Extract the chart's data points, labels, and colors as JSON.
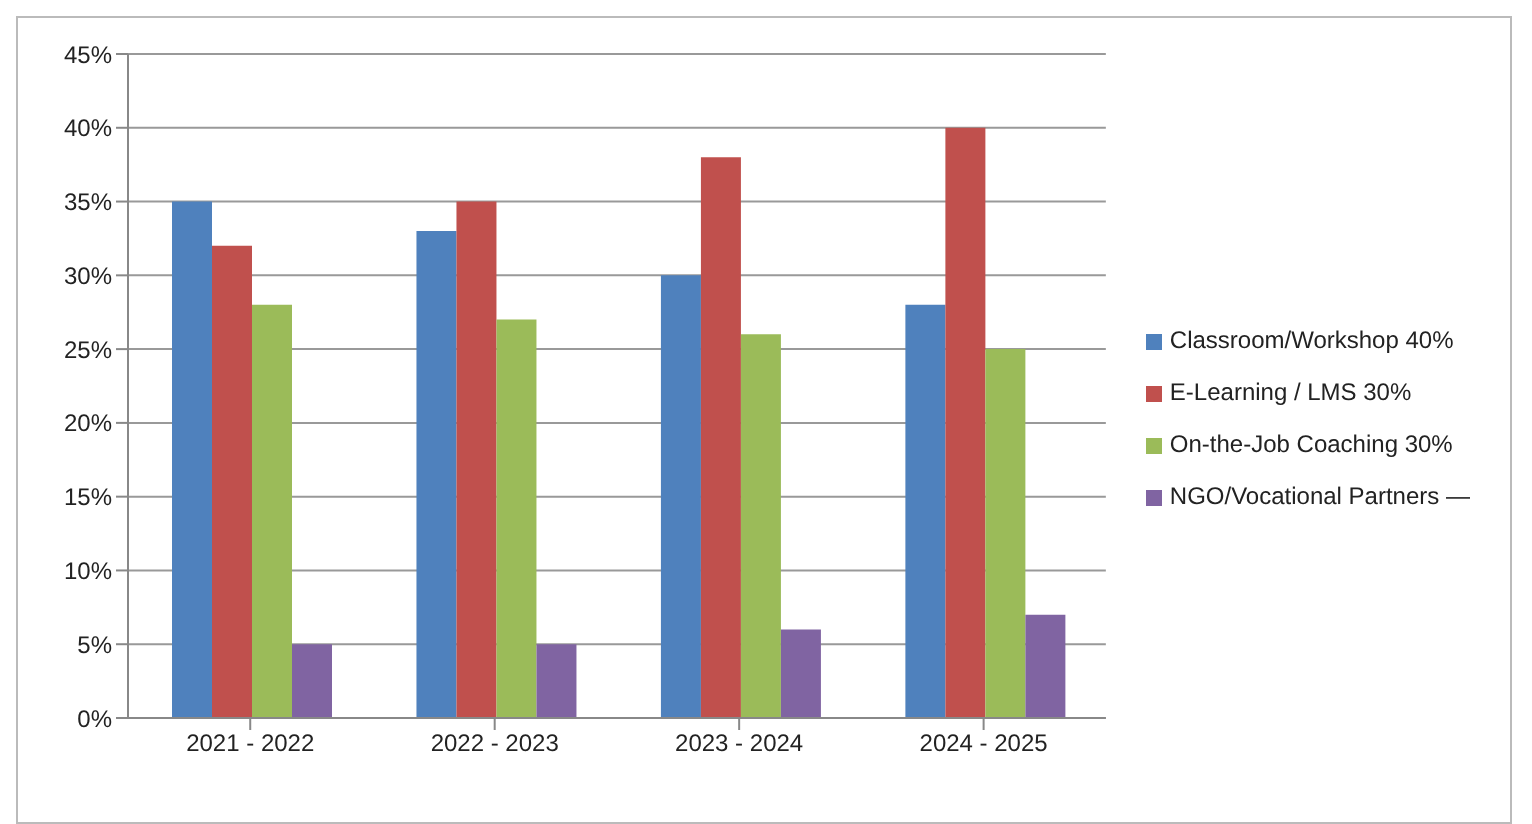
{
  "chart_data": {
    "type": "bar",
    "categories": [
      "2021 - 2022",
      "2022 - 2023",
      "2023 - 2024",
      "2024 - 2025"
    ],
    "series": [
      {
        "name": "Classroom/Workshop 40%",
        "color": "#4f81bd",
        "values": [
          35,
          33,
          30,
          28
        ]
      },
      {
        "name": "E-Learning / LMS 30%",
        "color": "#c0504d",
        "values": [
          32,
          35,
          38,
          40
        ]
      },
      {
        "name": "On-the-Job Coaching 30%",
        "color": "#9bbb59",
        "values": [
          28,
          27,
          26,
          25
        ]
      },
      {
        "name": "NGO/Vocational Partners —",
        "color": "#8064a2",
        "values": [
          5,
          5,
          6,
          7
        ]
      }
    ],
    "ylim": [
      0,
      45
    ],
    "yticks": [
      {
        "value": 0,
        "label": "0%"
      },
      {
        "value": 5,
        "label": "5%"
      },
      {
        "value": 10,
        "label": "10%"
      },
      {
        "value": 15,
        "label": "15%"
      },
      {
        "value": 20,
        "label": "20%"
      },
      {
        "value": 25,
        "label": "25%"
      },
      {
        "value": 30,
        "label": "30%"
      },
      {
        "value": 35,
        "label": "35%"
      },
      {
        "value": 40,
        "label": "40%"
      },
      {
        "value": 45,
        "label": "45%"
      }
    ],
    "grid": "y",
    "legend": "right"
  }
}
